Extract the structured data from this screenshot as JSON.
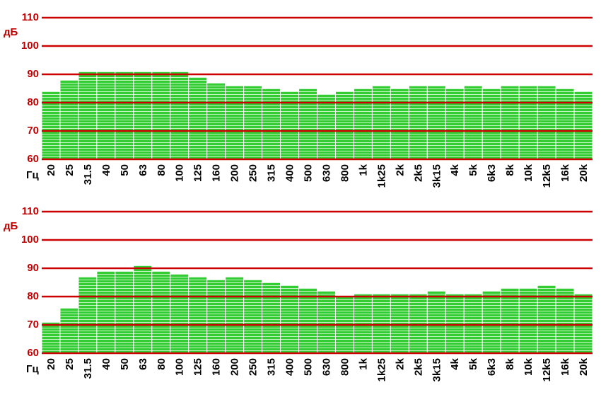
{
  "chart_data": [
    {
      "type": "bar",
      "y_label": "дБ",
      "x_label": "Гц",
      "categories": [
        "20",
        "25",
        "31.5",
        "40",
        "50",
        "63",
        "80",
        "100",
        "125",
        "160",
        "200",
        "250",
        "315",
        "400",
        "500",
        "630",
        "800",
        "1k",
        "1k25",
        "2k",
        "2k5",
        "3k15",
        "4k",
        "5k",
        "6k3",
        "8k",
        "10k",
        "12k5",
        "16k",
        "20k"
      ],
      "values": [
        84,
        88,
        91,
        91,
        91,
        91,
        91,
        91,
        89,
        87,
        86,
        86,
        85,
        84,
        85,
        83,
        84,
        85,
        86,
        85,
        86,
        86,
        85,
        86,
        85,
        86,
        86,
        86,
        85,
        84
      ],
      "color": "#33cc33",
      "grid_color": "#cc0000",
      "grid": true,
      "ylim": [
        60,
        110
      ],
      "yticks": [
        60,
        70,
        80,
        90,
        100,
        110
      ]
    },
    {
      "type": "bar",
      "y_label": "дБ",
      "x_label": "Гц",
      "categories": [
        "20",
        "25",
        "31.5",
        "40",
        "50",
        "63",
        "80",
        "100",
        "125",
        "160",
        "200",
        "250",
        "315",
        "400",
        "500",
        "630",
        "800",
        "1k",
        "1k25",
        "2k",
        "2k5",
        "3k15",
        "4k",
        "5k",
        "6k3",
        "8k",
        "10k",
        "12k5",
        "16k",
        "20k"
      ],
      "values": [
        71,
        76,
        87,
        89,
        89,
        91,
        89,
        88,
        87,
        86,
        87,
        86,
        85,
        84,
        83,
        82,
        80,
        81,
        81,
        81,
        81,
        82,
        81,
        81,
        82,
        83,
        83,
        84,
        83,
        81
      ],
      "color": "#33cc33",
      "grid_color": "#cc0000",
      "grid": true,
      "ylim": [
        60,
        110
      ],
      "yticks": [
        60,
        70,
        80,
        90,
        100,
        110
      ]
    }
  ]
}
